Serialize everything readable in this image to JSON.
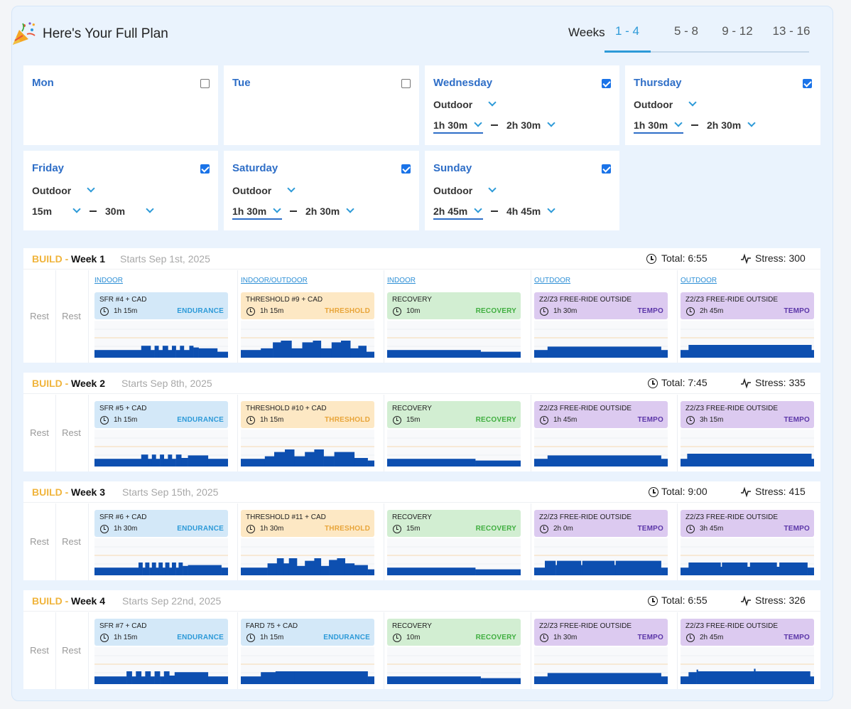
{
  "header": {
    "title": "Here's Your Full Plan",
    "weeks_label": "Weeks",
    "tabs": [
      {
        "label": "1 - 4",
        "active": true
      },
      {
        "label": "5 - 8",
        "active": false
      },
      {
        "label": "9 - 12",
        "active": false
      },
      {
        "label": "13 - 16",
        "active": false
      }
    ]
  },
  "days": [
    {
      "name": "Mon",
      "checked": false
    },
    {
      "name": "Tue",
      "checked": false
    },
    {
      "name": "Wednesday",
      "checked": true,
      "type": "Outdoor",
      "min": "1h 30m",
      "max": "2h 30m"
    },
    {
      "name": "Thursday",
      "checked": true,
      "type": "Outdoor",
      "min": "1h 30m",
      "max": "2h 30m"
    },
    {
      "name": "Friday",
      "checked": true,
      "type": "Outdoor",
      "min": "15m",
      "max": "30m"
    },
    {
      "name": "Saturday",
      "checked": true,
      "type": "Outdoor",
      "min": "1h 30m",
      "max": "2h 30m"
    },
    {
      "name": "Sunday",
      "checked": true,
      "type": "Outdoor",
      "min": "2h 45m",
      "max": "4h 45m"
    }
  ],
  "rest_label": "Rest",
  "weeks": [
    {
      "phase": "BUILD -",
      "label": "Week 1",
      "starts": "Starts Sep 1st, 2025",
      "total": "Total: 6:55",
      "stress": "Stress: 300",
      "workouts": [
        {
          "location": "INDOOR",
          "name": "SFR #4 + CAD",
          "duration": "1h 15m",
          "zone": "ENDURANCE",
          "kind": "endurance"
        },
        {
          "location": "INDOOR/OUTDOOR",
          "name": "THRESHOLD #9 + CAD",
          "duration": "1h 15m",
          "zone": "THRESHOLD",
          "kind": "threshold"
        },
        {
          "location": "INDOOR",
          "name": "RECOVERY",
          "duration": "10m",
          "zone": "RECOVERY",
          "kind": "recovery"
        },
        {
          "location": "OUTDOOR",
          "name": "Z2/Z3 FREE-RIDE OUTSIDE",
          "duration": "1h 30m",
          "zone": "TEMPO",
          "kind": "tempo"
        },
        {
          "location": "OUTDOOR",
          "name": "Z2/Z3 FREE-RIDE OUTSIDE",
          "duration": "2h 45m",
          "zone": "TEMPO",
          "kind": "tempo"
        }
      ]
    },
    {
      "phase": "BUILD -",
      "label": "Week 2",
      "starts": "Starts Sep 8th, 2025",
      "total": "Total: 7:45",
      "stress": "Stress: 335",
      "workouts": [
        {
          "location": "",
          "name": "SFR #5 + CAD",
          "duration": "1h 15m",
          "zone": "ENDURANCE",
          "kind": "endurance"
        },
        {
          "location": "",
          "name": "THRESHOLD #10 + CAD",
          "duration": "1h 15m",
          "zone": "THRESHOLD",
          "kind": "threshold"
        },
        {
          "location": "",
          "name": "RECOVERY",
          "duration": "15m",
          "zone": "RECOVERY",
          "kind": "recovery"
        },
        {
          "location": "",
          "name": "Z2/Z3 FREE-RIDE OUTSIDE",
          "duration": "1h 45m",
          "zone": "TEMPO",
          "kind": "tempo"
        },
        {
          "location": "",
          "name": "Z2/Z3 FREE-RIDE OUTSIDE",
          "duration": "3h 15m",
          "zone": "TEMPO",
          "kind": "tempo"
        }
      ]
    },
    {
      "phase": "BUILD -",
      "label": "Week 3",
      "starts": "Starts Sep 15th, 2025",
      "total": "Total: 9:00",
      "stress": "Stress: 415",
      "workouts": [
        {
          "location": "",
          "name": "SFR #6 + CAD",
          "duration": "1h 30m",
          "zone": "ENDURANCE",
          "kind": "endurance"
        },
        {
          "location": "",
          "name": "THRESHOLD #11 + CAD",
          "duration": "1h 30m",
          "zone": "THRESHOLD",
          "kind": "threshold"
        },
        {
          "location": "",
          "name": "RECOVERY",
          "duration": "15m",
          "zone": "RECOVERY",
          "kind": "recovery"
        },
        {
          "location": "",
          "name": "Z2/Z3 FREE-RIDE OUTSIDE",
          "duration": "2h 0m",
          "zone": "TEMPO",
          "kind": "tempo"
        },
        {
          "location": "",
          "name": "Z2/Z3 FREE-RIDE OUTSIDE",
          "duration": "3h 45m",
          "zone": "TEMPO",
          "kind": "tempo"
        }
      ]
    },
    {
      "phase": "BUILD -",
      "label": "Week 4",
      "starts": "Starts Sep 22nd, 2025",
      "total": "Total: 6:55",
      "stress": "Stress: 326",
      "workouts": [
        {
          "location": "",
          "name": "SFR #7 + CAD",
          "duration": "1h 15m",
          "zone": "ENDURANCE",
          "kind": "endurance"
        },
        {
          "location": "",
          "name": "FARD 75 + CAD",
          "duration": "1h 15m",
          "zone": "ENDURANCE",
          "kind": "endurance"
        },
        {
          "location": "",
          "name": "RECOVERY",
          "duration": "10m",
          "zone": "RECOVERY",
          "kind": "recovery"
        },
        {
          "location": "",
          "name": "Z2/Z3 FREE-RIDE OUTSIDE",
          "duration": "1h 30m",
          "zone": "TEMPO",
          "kind": "tempo"
        },
        {
          "location": "",
          "name": "Z2/Z3 FREE-RIDE OUTSIDE",
          "duration": "2h 45m",
          "zone": "TEMPO",
          "kind": "tempo"
        }
      ]
    }
  ],
  "colors": {
    "accent": "#2d9ad8",
    "day_title": "#2e6ec7",
    "build": "#f0b43c",
    "bar": "#0d4fb0",
    "endurance": "#d3e8f8",
    "threshold": "#fde8c4",
    "recovery": "#d2eed2",
    "tempo": "#dccaf0"
  }
}
